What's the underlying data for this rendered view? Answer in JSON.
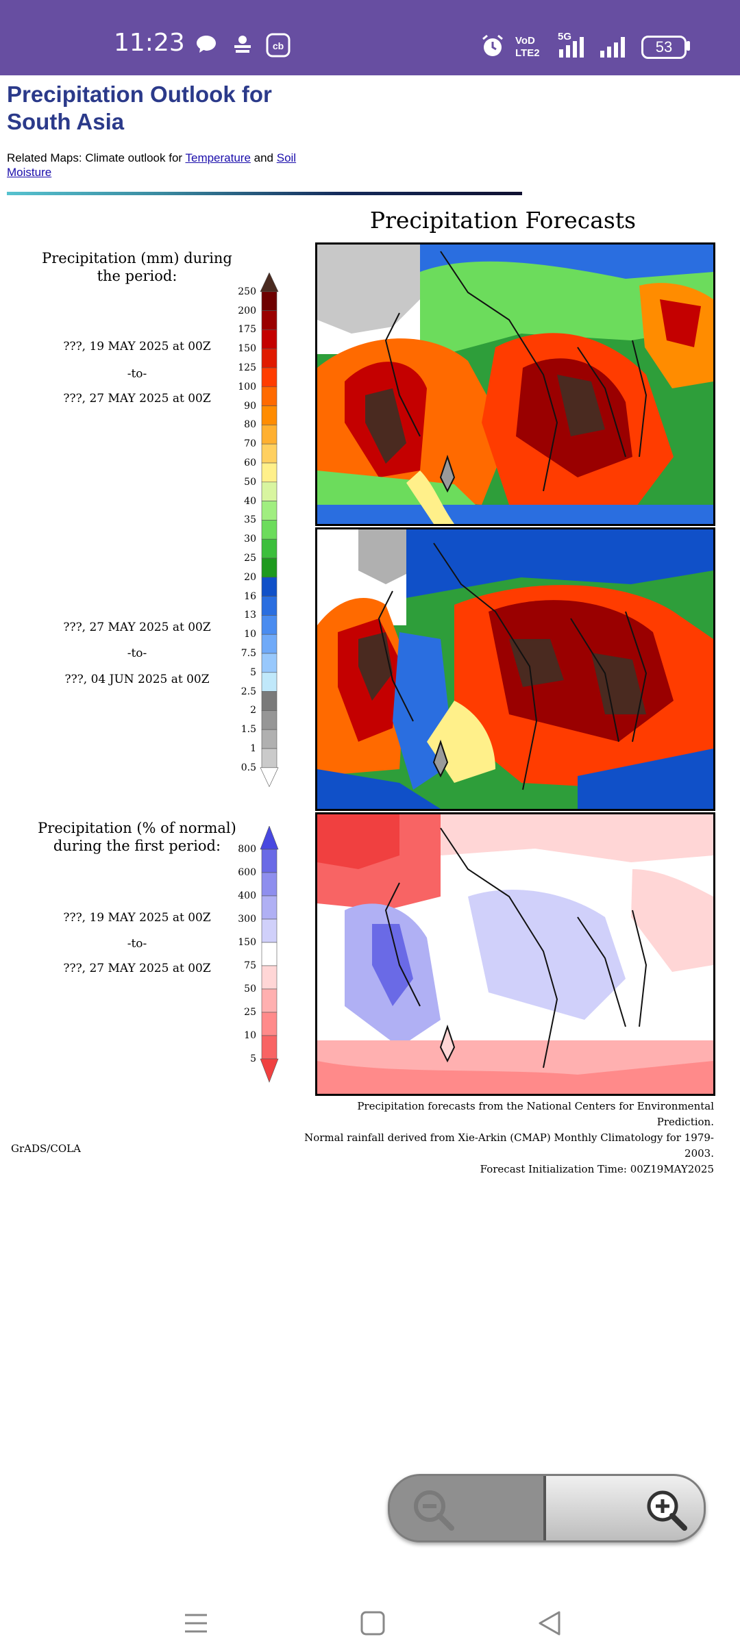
{
  "status_bar": {
    "time": "11:23",
    "battery": "53",
    "network_label": "5G",
    "volte_label": "VoLTE2"
  },
  "page": {
    "title": "Precipitation Outlook for South Asia",
    "related_prefix": "Related Maps: Climate outlook for ",
    "related_link_temperature": "Temperature",
    "related_and": " and ",
    "related_link_soil": "Soil Moisture"
  },
  "figure": {
    "title": "Precipitation Forecasts",
    "panel1": {
      "header": "Precipitation (mm) during the period:",
      "start": "???, 19 MAY 2025 at 00Z",
      "sep": "-to-",
      "end": "???, 27 MAY 2025 at 00Z"
    },
    "panel2": {
      "start": "???, 27 MAY 2025 at 00Z",
      "sep": "-to-",
      "end": "???, 04 JUN 2025 at 00Z"
    },
    "panel3": {
      "header": "Precipitation (% of normal) during the first period:",
      "start": "???, 19 MAY 2025 at 00Z",
      "sep": "-to-",
      "end": "???, 27 MAY 2025 at 00Z"
    },
    "credits": [
      "Precipitation forecasts from the National Centers for Environmental Prediction.",
      "Normal rainfall derived from Xie-Arkin (CMAP) Monthly Climatology for 1979-2003.",
      "Forecast Initialization Time: 00Z19MAY2025"
    ],
    "software": "GrADS/COLA"
  },
  "chart_data": [
    {
      "type": "heatmap",
      "title": "Precipitation Forecasts",
      "description_label": "Precipitation (mm)",
      "legend_levels": [
        "250",
        "200",
        "175",
        "150",
        "125",
        "100",
        "90",
        "80",
        "70",
        "60",
        "50",
        "40",
        "35",
        "30",
        "25",
        "20",
        "16",
        "13",
        "10",
        "7.5",
        "5",
        "2.5",
        "2",
        "1.5",
        "1",
        "0.5"
      ],
      "legend_colors": [
        "#4a2a20",
        "#6e0000",
        "#9a0000",
        "#c40000",
        "#e01a00",
        "#ff3c00",
        "#ff6a00",
        "#ff8c00",
        "#ffb030",
        "#ffd060",
        "#fff08a",
        "#d8f5a0",
        "#a0ee80",
        "#6cdc5c",
        "#3cbf3c",
        "#1e9a1e",
        "#1050c8",
        "#2a6ee0",
        "#4a8cf0",
        "#70aaf8",
        "#98c8fc",
        "#c0e8fa",
        "#7a7a7a",
        "#969696",
        "#b0b0b0",
        "#cacaca",
        "#ffffff"
      ],
      "panels": [
        "19 MAY 2025 - 27 MAY 2025",
        "27 MAY 2025 - 04 JUN 2025"
      ]
    },
    {
      "type": "heatmap",
      "description_label": "Precipitation (% of normal)",
      "legend_levels": [
        "800",
        "600",
        "400",
        "300",
        "150",
        "75",
        "50",
        "25",
        "10",
        "5"
      ],
      "legend_colors": [
        "#4848e0",
        "#6a6ae6",
        "#8e8eee",
        "#b0b0f4",
        "#d0d0fa",
        "#ffffff",
        "#ffd6d6",
        "#ffb0b0",
        "#ff8a8a",
        "#f86464",
        "#f04040"
      ],
      "panels": [
        "19 MAY 2025 - 27 MAY 2025"
      ]
    }
  ]
}
